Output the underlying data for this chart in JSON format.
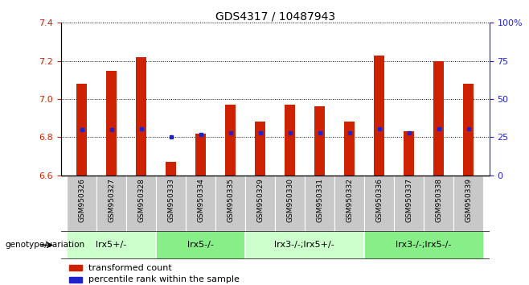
{
  "title": "GDS4317 / 10487943",
  "samples": [
    "GSM950326",
    "GSM950327",
    "GSM950328",
    "GSM950333",
    "GSM950334",
    "GSM950335",
    "GSM950329",
    "GSM950330",
    "GSM950331",
    "GSM950332",
    "GSM950336",
    "GSM950337",
    "GSM950338",
    "GSM950339"
  ],
  "bar_values": [
    7.08,
    7.15,
    7.22,
    6.67,
    6.82,
    6.97,
    6.88,
    6.97,
    6.96,
    6.88,
    7.23,
    6.83,
    7.2,
    7.08
  ],
  "percentile_values": [
    6.84,
    6.84,
    6.845,
    6.803,
    6.813,
    6.823,
    6.822,
    6.822,
    6.822,
    6.822,
    6.843,
    6.822,
    6.843,
    6.843
  ],
  "y_min": 6.6,
  "y_max": 7.4,
  "y_ticks": [
    6.6,
    6.8,
    7.0,
    7.2,
    7.4
  ],
  "y2_ticks": [
    0,
    25,
    50,
    75,
    100
  ],
  "bar_color": "#cc2200",
  "percentile_color": "#2222cc",
  "groups": [
    {
      "label": "lrx5+/-",
      "start": 0,
      "end": 3,
      "color": "#ccffcc"
    },
    {
      "label": "lrx5-/-",
      "start": 3,
      "end": 6,
      "color": "#88ee88"
    },
    {
      "label": "lrx3-/-;lrx5+/-",
      "start": 6,
      "end": 10,
      "color": "#ccffcc"
    },
    {
      "label": "lrx3-/-;lrx5-/-",
      "start": 10,
      "end": 14,
      "color": "#88ee88"
    }
  ],
  "group_row_label": "genotype/variation",
  "legend_bar_label": "transformed count",
  "legend_pct_label": "percentile rank within the sample",
  "bar_width": 0.35
}
